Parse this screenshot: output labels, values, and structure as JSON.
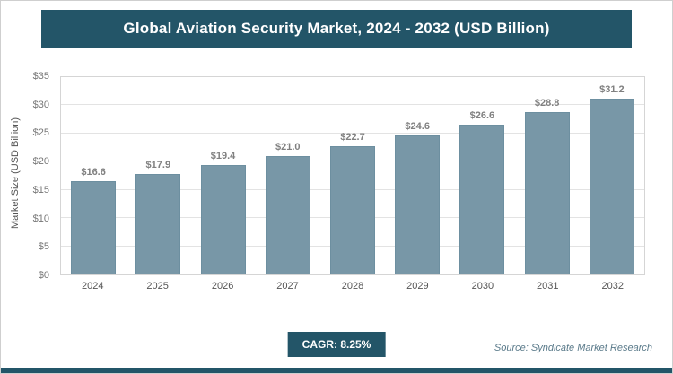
{
  "header": {
    "title": "Global Aviation Security Market, 2024 - 2032 (USD Billion)"
  },
  "footer": {
    "cagr_label": "CAGR: 8.25%",
    "source": "Source: Syndicate Market Research"
  },
  "colors": {
    "accent": "#235568",
    "bar_fill": "#7897A7",
    "bar_border": "#6d8fa0",
    "gridline": "#e3e3e3"
  },
  "chart_data": {
    "type": "bar",
    "title": "Global Aviation Security Market, 2024 - 2032 (USD Billion)",
    "categories": [
      "2024",
      "2025",
      "2026",
      "2027",
      "2028",
      "2029",
      "2030",
      "2031",
      "2032"
    ],
    "values": [
      16.6,
      17.9,
      19.4,
      21.0,
      22.7,
      24.6,
      26.6,
      28.8,
      31.2
    ],
    "value_labels": [
      "$16.6",
      "$17.9",
      "$19.4",
      "$21.0",
      "$22.7",
      "$24.6",
      "$26.6",
      "$28.8",
      "$31.2"
    ],
    "xlabel": "",
    "ylabel": "Market Size (USD Billion)",
    "ylim": [
      0,
      35
    ],
    "ytick_step": 5,
    "ytick_labels": [
      "$0",
      "$5",
      "$10",
      "$15",
      "$20",
      "$25",
      "$30",
      "$35"
    ],
    "grid": true,
    "legend": false
  }
}
